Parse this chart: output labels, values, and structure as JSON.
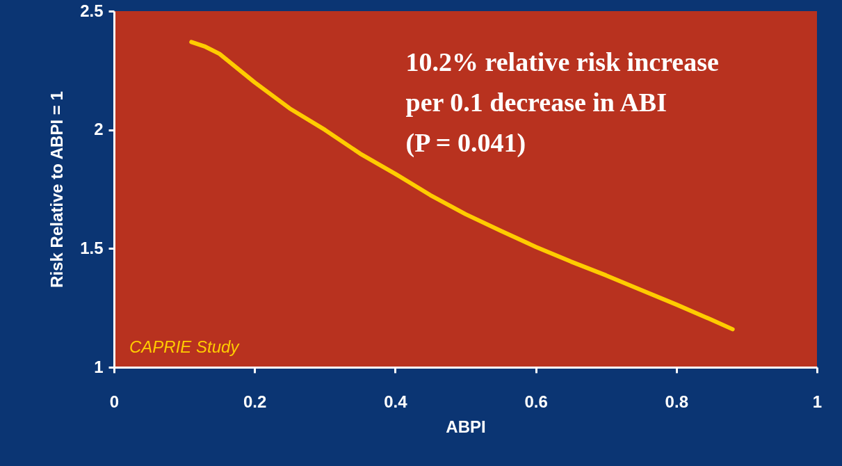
{
  "chart_data": {
    "type": "line",
    "xlabel": "ABPI",
    "ylabel": "Risk Relative to ABPI = 1",
    "x": [
      0.11,
      0.13,
      0.15,
      0.2,
      0.25,
      0.3,
      0.35,
      0.4,
      0.45,
      0.5,
      0.55,
      0.6,
      0.65,
      0.7,
      0.75,
      0.8,
      0.85,
      0.88
    ],
    "series": [
      {
        "color": "#ffcc00",
        "values": [
          2.37,
          2.35,
          2.32,
          2.2,
          2.09,
          2.0,
          1.9,
          1.815,
          1.725,
          1.645,
          1.575,
          1.507,
          1.445,
          1.387,
          1.325,
          1.264,
          1.2,
          1.16
        ]
      }
    ],
    "xlim": [
      0,
      1
    ],
    "xticks": [
      0,
      0.2,
      0.4,
      0.6,
      0.8,
      1
    ],
    "ylim": [
      1,
      2.5
    ],
    "yticks": [
      1,
      1.5,
      2,
      2.5
    ],
    "grid": false,
    "marker": "none",
    "line_style": "solid",
    "annotations": [
      "10.2% relative risk increase\nper 0.1 decrease in ABI\n(P = 0.041)",
      "CAPRIE Study"
    ]
  }
}
